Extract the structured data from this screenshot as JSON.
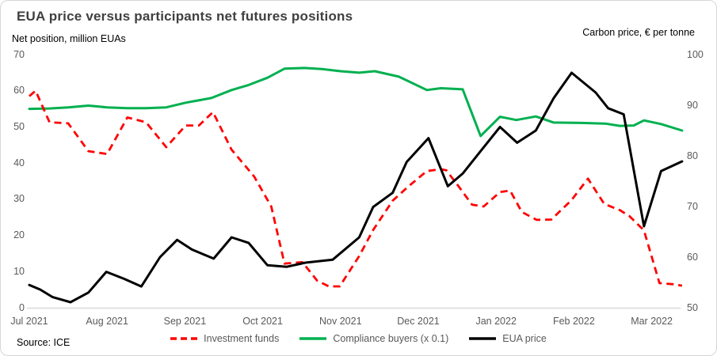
{
  "chart_data": {
    "type": "line",
    "title": "EUA price versus participants net futures positions",
    "source": "Source: ICE",
    "x_axis": {
      "unit": "months since Jul 2021",
      "labels": [
        "Jul 2021",
        "Aug 2021",
        "Sep 2021",
        "Oct 2021",
        "Nov 2021",
        "Dec 2021",
        "Jan 2022",
        "Feb 2022",
        "Mar 2022"
      ],
      "label_positions": [
        0,
        1,
        2,
        3,
        4,
        5,
        6,
        7,
        8
      ],
      "range": [
        0,
        8.42
      ],
      "gridlines": false
    },
    "left_axis": {
      "title": "Net position, million EUAs",
      "range": [
        0,
        70
      ],
      "ticks": [
        0,
        10,
        20,
        30,
        40,
        50,
        60,
        70
      ]
    },
    "right_axis": {
      "title": "Carbon price, € per tonne",
      "range": [
        50,
        100
      ],
      "ticks": [
        50,
        60,
        70,
        80,
        90,
        100
      ]
    },
    "legend": {
      "position": "bottom",
      "items": [
        {
          "label": "Investment funds",
          "color": "#ff0000",
          "dashed": true
        },
        {
          "label": "Compliance buyers (x 0.1)",
          "color": "#00b050",
          "dashed": false
        },
        {
          "label": "EUA price",
          "color": "#000000",
          "dashed": false
        }
      ]
    },
    "series": [
      {
        "name": "Compliance buyers (x 0.1)",
        "axis": "left",
        "color": "#00b050",
        "line_style": "solid",
        "points": [
          [
            0,
            55.0
          ],
          [
            0.26,
            55.1
          ],
          [
            0.5,
            55.4
          ],
          [
            0.76,
            55.9
          ],
          [
            1.0,
            55.4
          ],
          [
            1.26,
            55.2
          ],
          [
            1.5,
            55.2
          ],
          [
            1.76,
            55.4
          ],
          [
            2.01,
            56.7
          ],
          [
            2.34,
            58.0
          ],
          [
            2.6,
            60.2
          ],
          [
            2.82,
            61.6
          ],
          [
            3.06,
            63.6
          ],
          [
            3.28,
            66.1
          ],
          [
            3.53,
            66.3
          ],
          [
            3.76,
            66.0
          ],
          [
            4.0,
            65.4
          ],
          [
            4.24,
            65.0
          ],
          [
            4.44,
            65.4
          ],
          [
            4.75,
            63.9
          ],
          [
            5.11,
            60.2
          ],
          [
            5.29,
            60.7
          ],
          [
            5.57,
            60.4
          ],
          [
            5.8,
            47.5
          ],
          [
            6.05,
            52.8
          ],
          [
            6.26,
            51.9
          ],
          [
            6.51,
            52.9
          ],
          [
            6.74,
            51.2
          ],
          [
            7.1,
            51.1
          ],
          [
            7.41,
            50.9
          ],
          [
            7.59,
            50.3
          ],
          [
            7.77,
            50.4
          ],
          [
            7.9,
            51.8
          ],
          [
            8.12,
            50.8
          ],
          [
            8.39,
            49.0
          ]
        ]
      },
      {
        "name": "Investment funds",
        "axis": "left",
        "color": "#ff0000",
        "line_style": "dashed",
        "points": [
          [
            0,
            58.5
          ],
          [
            0.08,
            60.0
          ],
          [
            0.26,
            51.3
          ],
          [
            0.5,
            51.0
          ],
          [
            0.76,
            43.3
          ],
          [
            1.0,
            42.5
          ],
          [
            1.26,
            52.6
          ],
          [
            1.5,
            51.3
          ],
          [
            1.76,
            44.4
          ],
          [
            2.01,
            50.4
          ],
          [
            2.18,
            50.4
          ],
          [
            2.36,
            54.1
          ],
          [
            2.6,
            43.7
          ],
          [
            2.89,
            36.3
          ],
          [
            3.11,
            28.0
          ],
          [
            3.28,
            12.2
          ],
          [
            3.51,
            12.6
          ],
          [
            3.7,
            7.5
          ],
          [
            3.85,
            5.9
          ],
          [
            3.99,
            5.9
          ],
          [
            4.24,
            14.3
          ],
          [
            4.42,
            21.5
          ],
          [
            4.67,
            29.6
          ],
          [
            4.87,
            33.5
          ],
          [
            5.11,
            37.8
          ],
          [
            5.29,
            38.3
          ],
          [
            5.36,
            38.0
          ],
          [
            5.52,
            33.5
          ],
          [
            5.69,
            28.5
          ],
          [
            5.84,
            28.0
          ],
          [
            6.05,
            32.0
          ],
          [
            6.18,
            32.4
          ],
          [
            6.33,
            26.5
          ],
          [
            6.52,
            24.3
          ],
          [
            6.71,
            24.4
          ],
          [
            6.97,
            29.8
          ],
          [
            7.18,
            35.7
          ],
          [
            7.39,
            28.7
          ],
          [
            7.59,
            27.0
          ],
          [
            7.71,
            25.4
          ],
          [
            7.9,
            21.4
          ],
          [
            8.1,
            6.8
          ],
          [
            8.28,
            6.5
          ],
          [
            8.39,
            6.1
          ]
        ]
      },
      {
        "name": "EUA price",
        "axis": "right",
        "color": "#000000",
        "line_style": "solid",
        "points": [
          [
            0,
            54.5
          ],
          [
            0.14,
            53.6
          ],
          [
            0.3,
            52.1
          ],
          [
            0.53,
            51.1
          ],
          [
            0.76,
            53.0
          ],
          [
            0.99,
            57.1
          ],
          [
            1.22,
            55.7
          ],
          [
            1.44,
            54.2
          ],
          [
            1.68,
            60.0
          ],
          [
            1.9,
            63.4
          ],
          [
            2.09,
            61.5
          ],
          [
            2.37,
            59.7
          ],
          [
            2.6,
            63.9
          ],
          [
            2.82,
            62.8
          ],
          [
            3.06,
            58.4
          ],
          [
            3.31,
            58.1
          ],
          [
            3.55,
            58.9
          ],
          [
            3.9,
            59.5
          ],
          [
            4.24,
            63.9
          ],
          [
            4.42,
            69.9
          ],
          [
            4.67,
            72.7
          ],
          [
            4.85,
            78.8
          ],
          [
            5.13,
            83.5
          ],
          [
            5.38,
            74.0
          ],
          [
            5.57,
            76.5
          ],
          [
            5.82,
            81.3
          ],
          [
            6.05,
            85.7
          ],
          [
            6.27,
            82.6
          ],
          [
            6.51,
            85.0
          ],
          [
            6.74,
            91.4
          ],
          [
            6.97,
            96.4
          ],
          [
            7.28,
            92.5
          ],
          [
            7.44,
            89.4
          ],
          [
            7.64,
            88.2
          ],
          [
            7.9,
            66.1
          ],
          [
            8.12,
            77.0
          ],
          [
            8.39,
            78.9
          ]
        ]
      }
    ]
  }
}
